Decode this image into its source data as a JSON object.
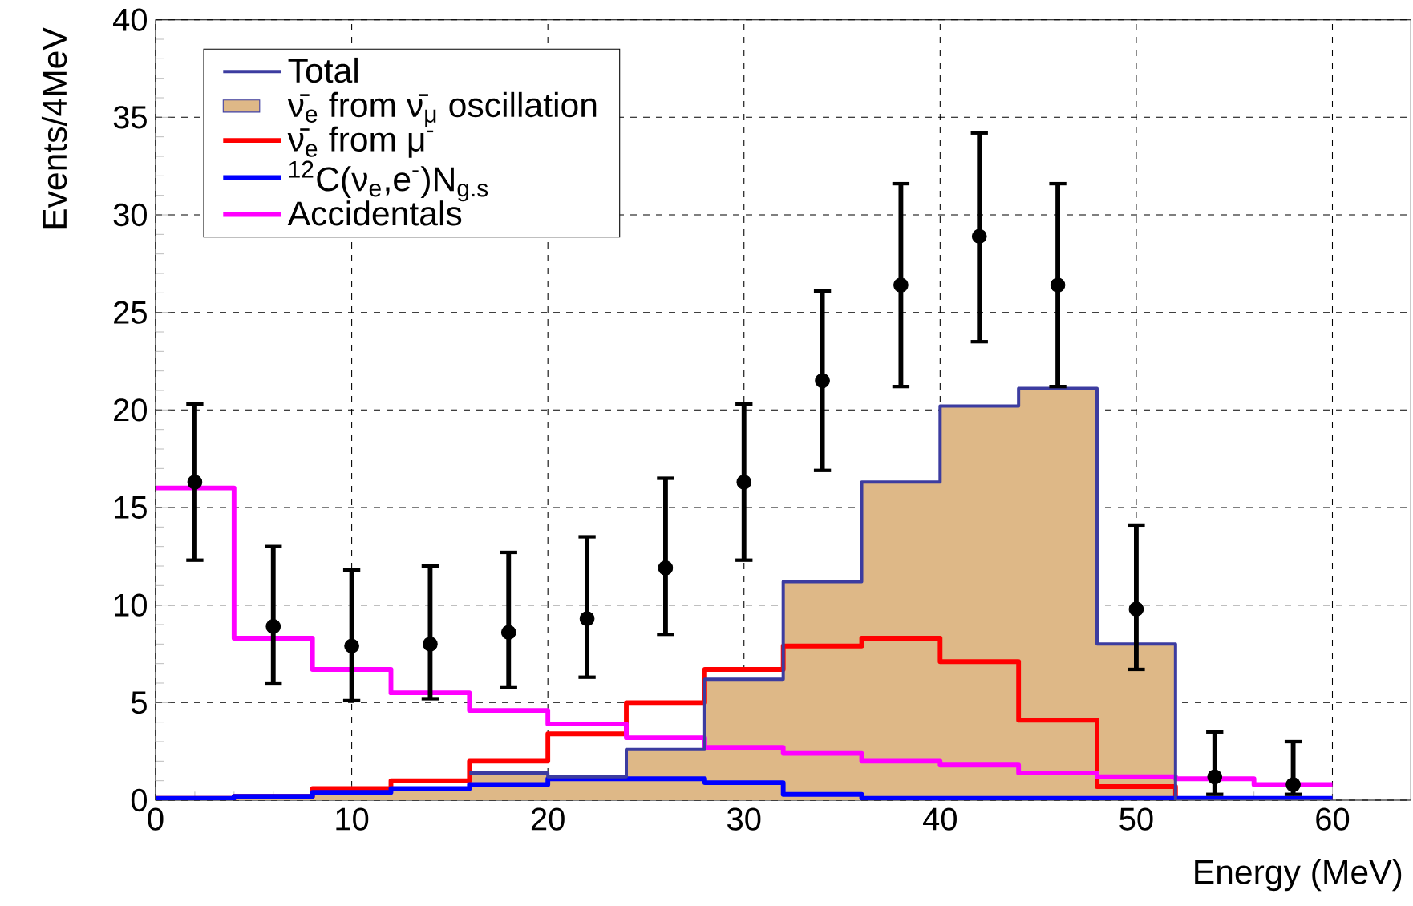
{
  "chart_data": {
    "type": "step",
    "xlabel": "Energy (MeV)",
    "ylabel": "Events/4MeV",
    "x": [
      0,
      4,
      8,
      12,
      16,
      20,
      24,
      28,
      32,
      36,
      40,
      44,
      48,
      52,
      56,
      60
    ],
    "series": [
      {
        "name": "Total",
        "type": "step",
        "color": "#3c3ca0",
        "values": [
          null,
          null,
          null,
          null,
          1.4,
          1.2,
          2.6,
          6.2,
          11.2,
          16.3,
          20.2,
          21.1,
          8.0,
          0,
          0,
          0
        ]
      },
      {
        "name": "ν̄$_{e}$ from ν̄$_{μ}$ oscillation",
        "type": "area",
        "color": "#deb887",
        "x": [
          0,
          4,
          4,
          8,
          8,
          12,
          12,
          16,
          16,
          20,
          20,
          24,
          24,
          28,
          28,
          32,
          32,
          36,
          36,
          40,
          40,
          44,
          44,
          48,
          48,
          52,
          52,
          56,
          56,
          60
        ],
        "values": [
          0.1,
          0.1,
          0.2,
          0.2,
          0.4,
          0.4,
          0.6,
          0.6,
          1.4,
          1.4,
          1.2,
          1.2,
          2.6,
          2.6,
          6.2,
          6.2,
          11.2,
          11.2,
          16.3,
          16.3,
          20.2,
          20.2,
          21.1,
          21.1,
          8.0,
          8.0,
          0,
          0,
          0,
          0
        ]
      },
      {
        "name": "ν̄$_{e}$ from μ$^{-}$",
        "type": "step",
        "color": "#ff0000",
        "values": [
          0.1,
          0.2,
          0.6,
          1.0,
          2.0,
          3.4,
          5.0,
          6.7,
          7.9,
          8.3,
          7.1,
          4.1,
          0.7,
          0,
          0,
          0
        ]
      },
      {
        "name": "$^{12}$C(ν$_{e}$,e$^{-}$)N$_{g.s}$",
        "type": "step",
        "color": "#0000ff",
        "values": [
          0.1,
          0.2,
          0.4,
          0.6,
          0.8,
          1.1,
          1.1,
          0.9,
          0.3,
          0.1,
          0.1,
          0.1,
          0.1,
          0.1,
          0.1,
          0.1
        ]
      },
      {
        "name": "Accidentals",
        "type": "step",
        "color": "#ff00ff",
        "values": [
          16.0,
          8.3,
          6.7,
          5.5,
          4.6,
          3.9,
          3.2,
          2.7,
          2.4,
          2.0,
          1.8,
          1.4,
          1.2,
          1.1,
          0.8,
          0.8
        ]
      },
      {
        "type": "scatter",
        "color": "#000000",
        "marker": "circle",
        "x": [
          2,
          6,
          10,
          14,
          18,
          22,
          26,
          30,
          34,
          38,
          42,
          46,
          50,
          54,
          58
        ],
        "values": [
          16.3,
          8.9,
          7.9,
          8.0,
          8.6,
          9.3,
          11.9,
          16.3,
          21.5,
          26.4,
          28.9,
          26.4,
          9.8,
          1.2,
          0.8
        ],
        "errors": [
          [
            12.3,
            20.3
          ],
          [
            6.0,
            13.0
          ],
          [
            5.1,
            11.8
          ],
          [
            5.2,
            12.0
          ],
          [
            5.8,
            12.7
          ],
          [
            6.3,
            13.5
          ],
          [
            8.5,
            16.5
          ],
          [
            12.3,
            20.3
          ],
          [
            16.9,
            26.1
          ],
          [
            21.2,
            31.6
          ],
          [
            23.5,
            34.2
          ],
          [
            21.2,
            31.6
          ],
          [
            6.7,
            14.1
          ],
          [
            0.3,
            3.5
          ],
          [
            0.3,
            3.0
          ]
        ]
      }
    ],
    "xlim": [
      0,
      64
    ],
    "ylim": [
      0,
      40
    ],
    "xticks": [
      0,
      10,
      20,
      30,
      40,
      50,
      60
    ],
    "yticks": [
      0,
      5,
      10,
      15,
      20,
      25,
      30,
      35,
      40
    ],
    "grid": true,
    "legend": "top left"
  }
}
